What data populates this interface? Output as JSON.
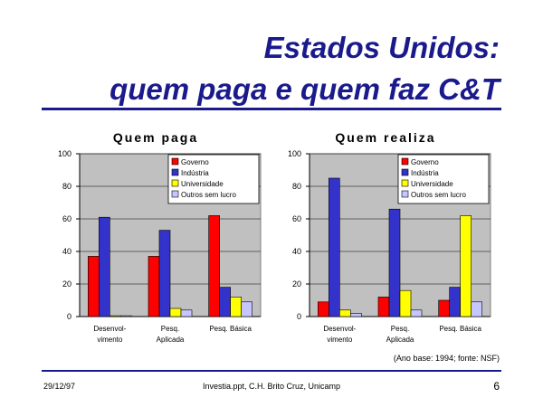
{
  "slide": {
    "title_line1": "Estados Unidos:",
    "title_line2": "quem paga e quem faz C&T",
    "note": "(Ano base: 1994; fonte: NSF)",
    "footer_date": "29/12/97",
    "footer_center": "Investia.ppt, C.H. Brito Cruz, Unicamp",
    "page_number": "6",
    "title_color": "#1a1a8c"
  },
  "chart_data": [
    {
      "type": "bar",
      "title": "Quem paga",
      "categories": [
        [
          "Desenvol-",
          "vimento"
        ],
        [
          "Pesq.",
          "Aplicada"
        ],
        [
          "Pesq. Básica"
        ]
      ],
      "ylim": [
        0,
        100
      ],
      "yticks": [
        0,
        20,
        40,
        60,
        80,
        100
      ],
      "grid": true,
      "legend_position": "top-right",
      "series": [
        {
          "name": "Governo",
          "color": "#ff0000",
          "values": [
            37,
            37,
            62
          ]
        },
        {
          "name": "Indústria",
          "color": "#3333cc",
          "values": [
            61,
            53,
            18
          ]
        },
        {
          "name": "Universidade",
          "color": "#ffff00",
          "values": [
            0.5,
            5,
            12
          ]
        },
        {
          "name": "Outros sem lucro",
          "color": "#c6c6ff",
          "values": [
            0.5,
            4,
            9
          ]
        }
      ]
    },
    {
      "type": "bar",
      "title": "Quem realiza",
      "categories": [
        [
          "Desenvol-",
          "vimento"
        ],
        [
          "Pesq.",
          "Aplicada"
        ],
        [
          "Pesq. Básica"
        ]
      ],
      "ylim": [
        0,
        100
      ],
      "yticks": [
        0,
        20,
        40,
        60,
        80,
        100
      ],
      "grid": true,
      "legend_position": "top-right",
      "series": [
        {
          "name": "Governo",
          "color": "#ff0000",
          "values": [
            9,
            12,
            10
          ]
        },
        {
          "name": "Indústria",
          "color": "#3333cc",
          "values": [
            85,
            66,
            18
          ]
        },
        {
          "name": "Universidade",
          "color": "#ffff00",
          "values": [
            4,
            16,
            62
          ]
        },
        {
          "name": "Outros sem lucro",
          "color": "#c6c6ff",
          "values": [
            2,
            4,
            9
          ]
        }
      ]
    }
  ]
}
